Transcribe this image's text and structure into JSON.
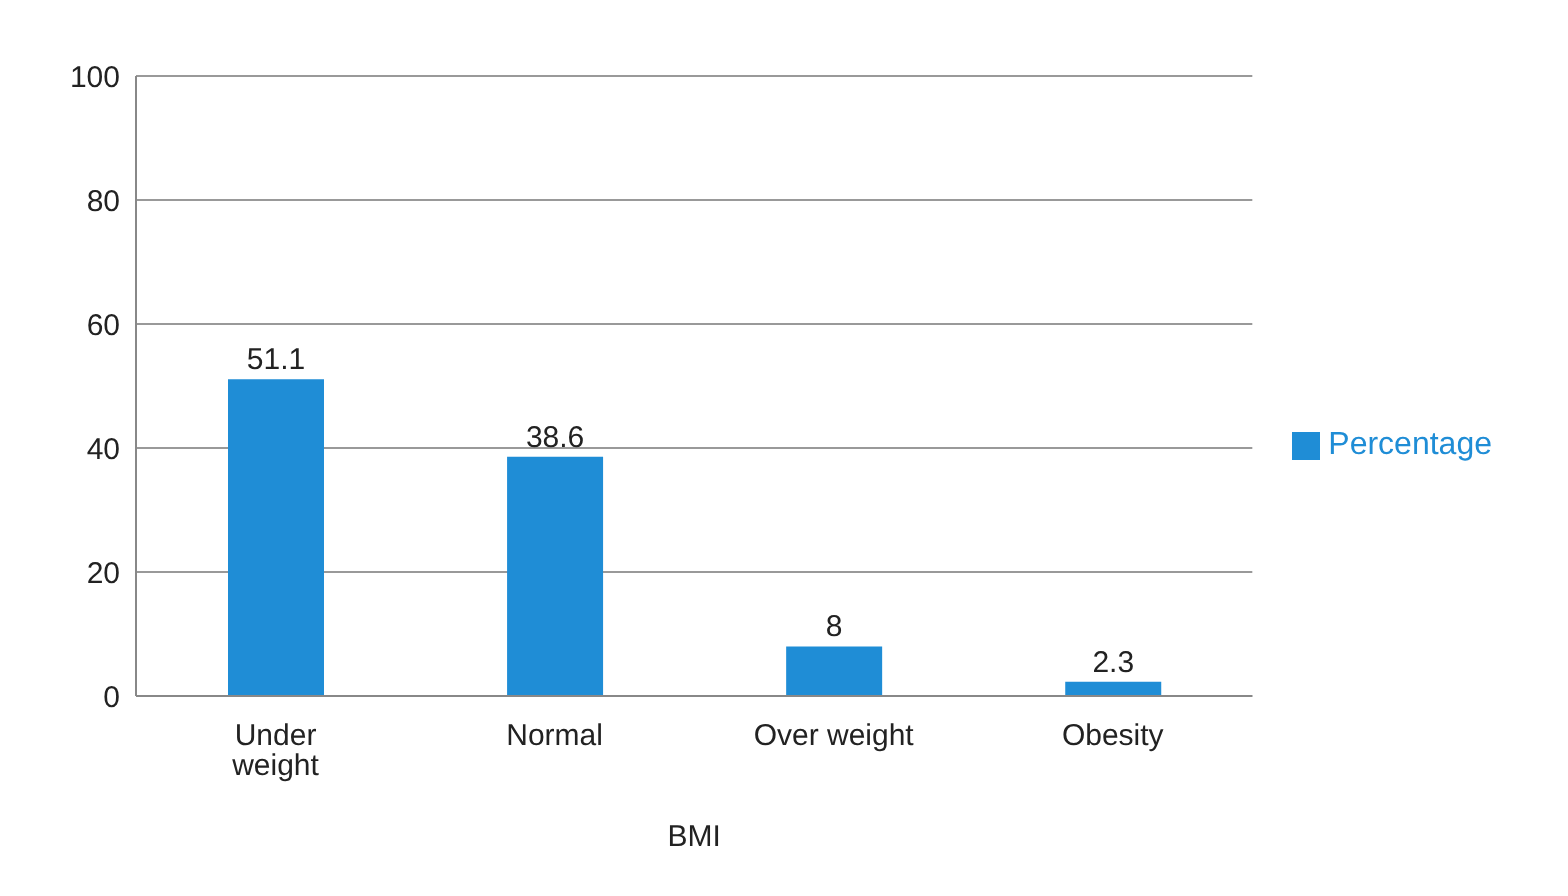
{
  "chart_data": {
    "type": "bar",
    "xlabel": "BMI",
    "categories": [
      "Under weight",
      "Normal",
      "Over weight",
      "Obesity"
    ],
    "series": [
      {
        "name": "Percentage",
        "color": "#1f8dd6",
        "values": [
          51.1,
          38.6,
          8,
          2.3
        ]
      }
    ],
    "ylim": [
      0,
      100
    ],
    "yticks": [
      0,
      20,
      40,
      60,
      80,
      100
    ],
    "grid": "y",
    "legend": "right",
    "data_labels": true
  }
}
